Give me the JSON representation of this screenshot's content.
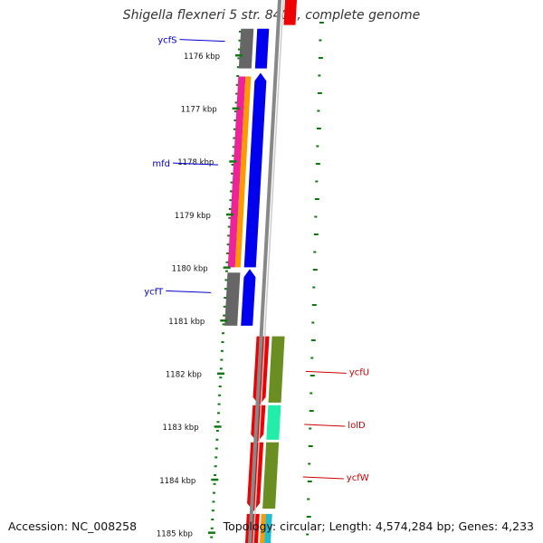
{
  "title": "Shigella flexneri 5 str. 8401, complete genome",
  "footer": {
    "accession": "Accession: NC_008258",
    "summary": "Topology: circular; Length: 4,574,284 bp; Genes: 4,233"
  },
  "ticks": [
    {
      "label": "1176 kbp",
      "kbp": 1176
    },
    {
      "label": "1177 kbp",
      "kbp": 1177
    },
    {
      "label": "1178 kbp",
      "kbp": 1178
    },
    {
      "label": "1179 kbp",
      "kbp": 1179
    },
    {
      "label": "1180 kbp",
      "kbp": 1180
    },
    {
      "label": "1181 kbp",
      "kbp": 1181
    },
    {
      "label": "1182 kbp",
      "kbp": 1182
    },
    {
      "label": "1183 kbp",
      "kbp": 1183
    },
    {
      "label": "1184 kbp",
      "kbp": 1184
    },
    {
      "label": "1185 kbp",
      "kbp": 1185
    }
  ],
  "genes": [
    {
      "name": "ycfS",
      "strand": "forward",
      "start_kbp": 1175.5,
      "end_kbp": 1176.25,
      "label_color": "#0000cc"
    },
    {
      "name": "mfd",
      "strand": "forward",
      "start_kbp": 1176.4,
      "end_kbp": 1180.0,
      "label_color": "#0000cc"
    },
    {
      "name": "ycfT",
      "strand": "forward",
      "start_kbp": 1180.1,
      "end_kbp": 1181.1,
      "label_color": "#0000cc"
    },
    {
      "name": "ycfU",
      "strand": "reverse",
      "start_kbp": 1181.3,
      "end_kbp": 1182.55,
      "label_color": "#cc0000"
    },
    {
      "name": "lolD",
      "strand": "reverse",
      "start_kbp": 1182.6,
      "end_kbp": 1183.25,
      "label_color": "#cc0000"
    },
    {
      "name": "ycfW",
      "strand": "reverse",
      "start_kbp": 1183.3,
      "end_kbp": 1184.55,
      "label_color": "#cc0000"
    }
  ],
  "colors": {
    "forward_cds": "#0000ee",
    "reverse_cds": "#ee0000",
    "backbone": "#888888",
    "tick": "#117711",
    "gray_feature": "#666666",
    "pink_feature": "#ee2299",
    "orange_feature": "#ff9900",
    "olive_feature": "#6b8e23",
    "aqua_feature": "#22eeaa"
  }
}
